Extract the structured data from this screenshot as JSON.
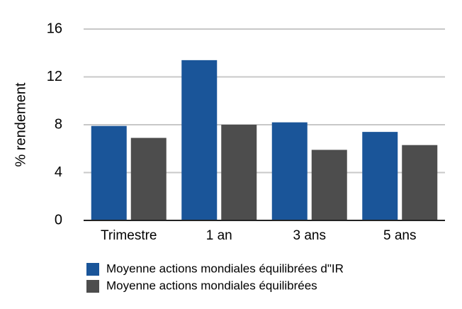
{
  "chart_data": {
    "type": "bar",
    "y_label": "% rendement",
    "categories": [
      "Trimestre",
      "1 an",
      "3 ans",
      "5 ans"
    ],
    "series": [
      {
        "name": "Moyenne actions mondiales équilibrées d\"IR",
        "color": "#1a5599",
        "values": [
          7.9,
          13.4,
          8.2,
          7.4
        ]
      },
      {
        "name": "Moyenne actions mondiales équilibrées",
        "color": "#4d4d4d",
        "values": [
          6.9,
          8.0,
          5.9,
          6.3
        ]
      }
    ],
    "ylim": [
      0,
      16
    ],
    "yticks": [
      0,
      4,
      8,
      12,
      16
    ],
    "grid": true
  }
}
